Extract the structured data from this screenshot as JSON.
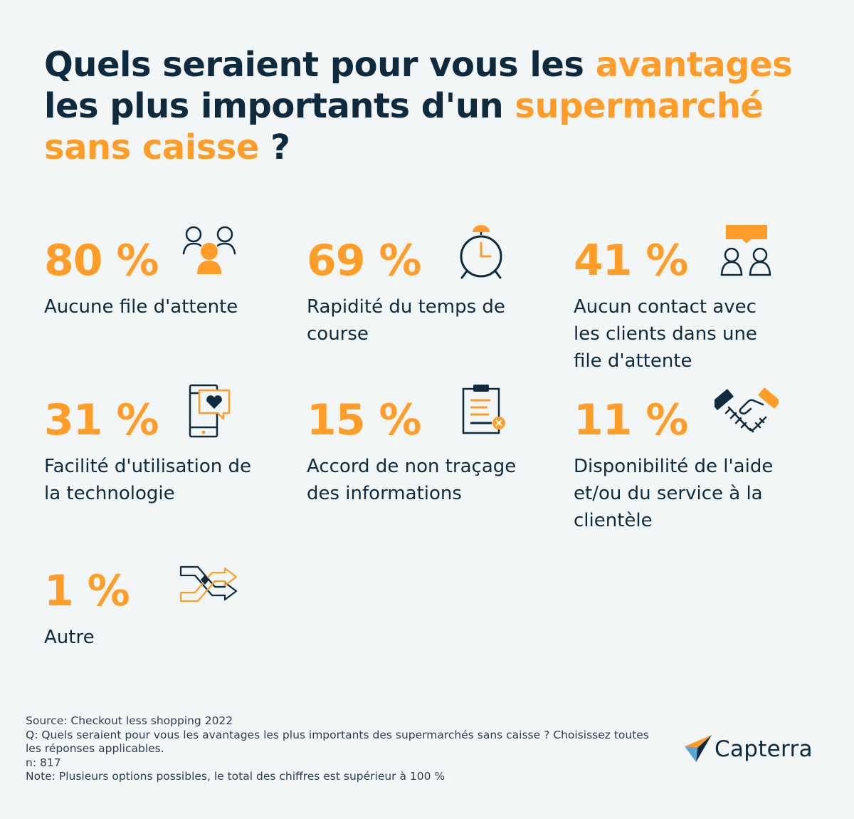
{
  "title": {
    "part1": "Quels seraient pour vous les ",
    "highlight1": "avantages",
    "part2": " les plus importants d'un ",
    "highlight2": "supermarché sans caisse",
    "part3": " ?"
  },
  "chart_data": {
    "type": "table",
    "title": "Quels seraient pour vous les avantages les plus importants d'un supermarché sans caisse ?",
    "categories": [
      "Aucune file d'attente",
      "Rapidité du temps de course",
      "Aucun contact avec les clients dans une file d'attente",
      "Facilité d'utilisation de la technologie",
      "Accord de non traçage des informations",
      "Disponibilité de l'aide et/ou du service à la clientèle",
      "Autre"
    ],
    "values": [
      80,
      69,
      41,
      31,
      15,
      11,
      1
    ],
    "unit": "%"
  },
  "stats": [
    {
      "value": "80 %",
      "label": "Aucune file d'attente",
      "icon": "people-group-icon"
    },
    {
      "value": "69 %",
      "label": "Rapidité du temps de course",
      "icon": "alarm-clock-icon"
    },
    {
      "value": "41 %",
      "label": "Aucun contact avec les clients dans une file d'attente",
      "icon": "people-chat-icon"
    },
    {
      "value": "31 %",
      "label": "Facilité d'utilisation de la technologie",
      "icon": "phone-heart-icon"
    },
    {
      "value": "15 %",
      "label": "Accord de non traçage des informations",
      "icon": "clipboard-icon"
    },
    {
      "value": "11 %",
      "label": "Disponibilité de l'aide et/ou du service à la clientèle",
      "icon": "handshake-icon"
    },
    {
      "value": "1 %",
      "label": "Autre",
      "icon": "shuffle-arrows-icon"
    }
  ],
  "footer": {
    "source": "Source: Checkout less shopping 2022",
    "question": "Q: Quels seraient pour vous les avantages les plus importants des supermarchés sans caisse ? Choisissez toutes les réponses applicables.",
    "n": "n: 817",
    "note": "Note: Plusieurs options possibles, le total des chiffres est supérieur à 100 %"
  },
  "brand": {
    "name": "Capterra"
  },
  "colors": {
    "background": "#f3f6f7",
    "navy": "#0e2a3f",
    "orange": "#ff9d28"
  }
}
